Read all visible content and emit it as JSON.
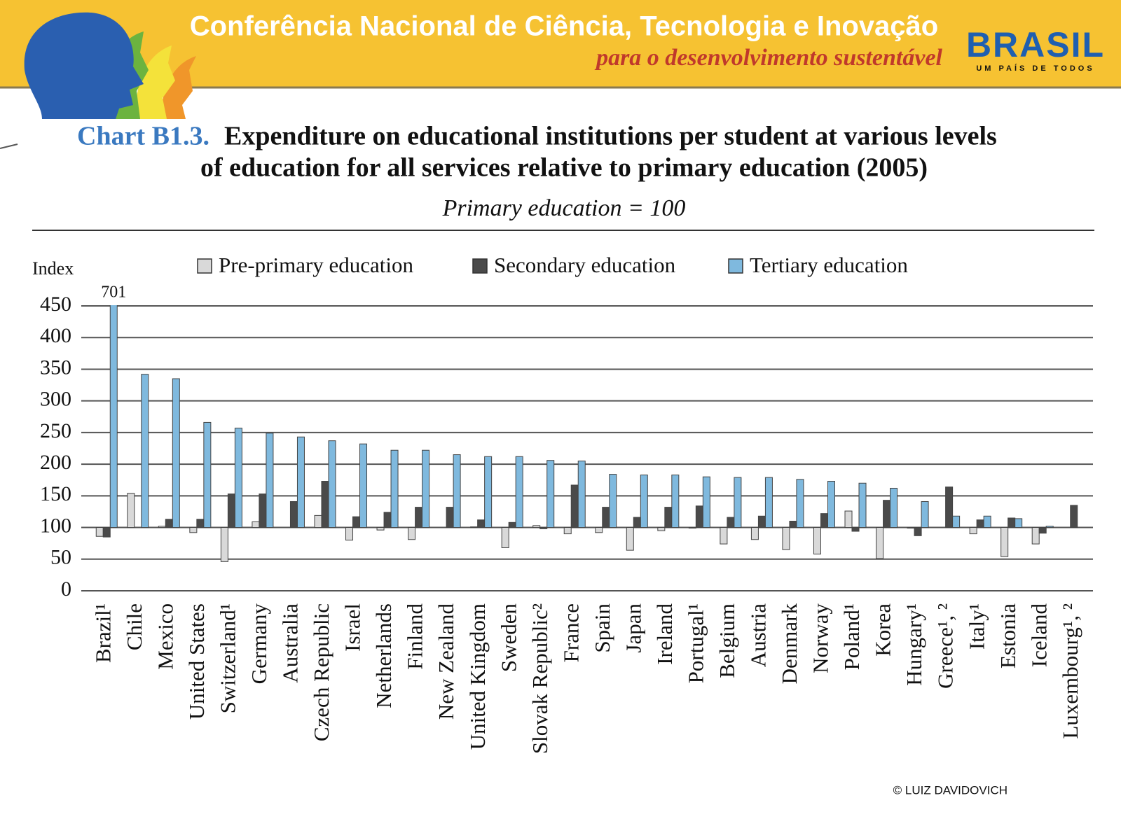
{
  "header": {
    "title": "Conferência Nacional de Ciência, Tecnologia e Inovação",
    "subtitle": "para o desenvolvimento sustentável",
    "logo": "BRASIL",
    "logo_tagline": "UM PAÍS DE TODOS"
  },
  "credit": "© LUIZ DAVIDOVICH",
  "chart_data": {
    "type": "bar",
    "label": "Chart B1.3.",
    "title": "Expenditure on educational institutions per student at various levels",
    "title_line2": "of education for all services relative to primary education (2005)",
    "subtitle": "Primary education = 100",
    "y_label": "Index",
    "baseline": 100,
    "categories": [
      "Brazil¹",
      "Chile",
      "Mexico",
      "United States",
      "Switzerland¹",
      "Germany",
      "Australia",
      "Czech Republic",
      "Israel",
      "Netherlands",
      "Finland",
      "New Zealand",
      "United Kingdom",
      "Sweden",
      "Slovak Republic²",
      "France",
      "Spain",
      "Japan",
      "Ireland",
      "Portugal¹",
      "Belgium",
      "Austria",
      "Denmark",
      "Norway",
      "Poland¹",
      "Korea",
      "Hungary¹",
      "Greece¹, ²",
      "Italy¹",
      "Estonia",
      "Iceland",
      "Luxembourg¹, ²"
    ],
    "series": [
      {
        "name": "Pre-primary education",
        "color": "#d9d9d9",
        "values": [
          86,
          154,
          102,
          92,
          46,
          109,
          null,
          119,
          80,
          96,
          81,
          null,
          101,
          68,
          103,
          90,
          92,
          64,
          95,
          99,
          74,
          81,
          65,
          58,
          126,
          51,
          99,
          null,
          90,
          54,
          74,
          null
        ]
      },
      {
        "name": "Secondary education",
        "color": "#4a4a4a",
        "values": [
          85,
          null,
          113,
          113,
          153,
          153,
          141,
          173,
          117,
          124,
          132,
          132,
          112,
          108,
          98,
          167,
          132,
          116,
          132,
          134,
          116,
          118,
          110,
          122,
          94,
          143,
          87,
          164,
          112,
          115,
          91,
          135
        ]
      },
      {
        "name": "Tertiary education",
        "color": "#7fb9de",
        "values": [
          701,
          342,
          335,
          266,
          257,
          249,
          243,
          237,
          232,
          222,
          222,
          215,
          212,
          212,
          206,
          205,
          184,
          183,
          183,
          180,
          179,
          179,
          176,
          173,
          170,
          162,
          141,
          118,
          118,
          114,
          102,
          null
        ],
        "value_labels": [
          "701",
          null,
          null,
          null,
          null,
          null,
          null,
          null,
          null,
          null,
          null,
          null,
          null,
          null,
          null,
          null,
          null,
          null,
          null,
          null,
          null,
          null,
          null,
          null,
          null,
          null,
          null,
          null,
          null,
          null,
          null,
          null
        ]
      }
    ],
    "ylim": [
      0,
      450
    ],
    "yticks": [
      0,
      50,
      100,
      150,
      200,
      250,
      300,
      350,
      400,
      450
    ],
    "grid": true
  }
}
